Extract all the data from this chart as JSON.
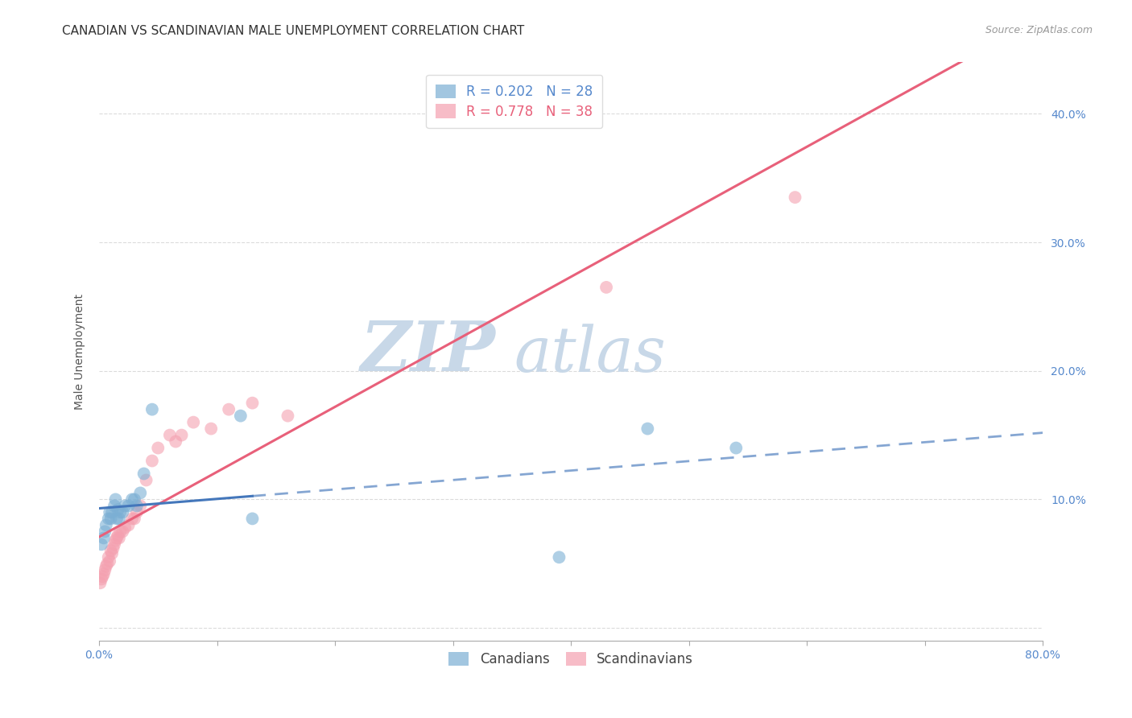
{
  "title": "CANADIAN VS SCANDINAVIAN MALE UNEMPLOYMENT CORRELATION CHART",
  "source": "Source: ZipAtlas.com",
  "ylabel": "Male Unemployment",
  "ytick_labels": [
    "",
    "10.0%",
    "20.0%",
    "30.0%",
    "40.0%"
  ],
  "ytick_values": [
    0.0,
    0.1,
    0.2,
    0.3,
    0.4
  ],
  "xlim": [
    0.0,
    0.8
  ],
  "ylim": [
    -0.01,
    0.44
  ],
  "canadians_x": [
    0.002,
    0.004,
    0.005,
    0.006,
    0.008,
    0.009,
    0.01,
    0.011,
    0.013,
    0.014,
    0.015,
    0.016,
    0.017,
    0.018,
    0.02,
    0.022,
    0.025,
    0.028,
    0.03,
    0.032,
    0.035,
    0.038,
    0.045,
    0.12,
    0.13,
    0.39,
    0.465,
    0.54
  ],
  "canadians_y": [
    0.065,
    0.07,
    0.075,
    0.08,
    0.085,
    0.09,
    0.085,
    0.09,
    0.095,
    0.1,
    0.085,
    0.092,
    0.085,
    0.09,
    0.09,
    0.095,
    0.095,
    0.1,
    0.1,
    0.095,
    0.105,
    0.12,
    0.17,
    0.165,
    0.085,
    0.055,
    0.155,
    0.14
  ],
  "scandinavians_x": [
    0.001,
    0.002,
    0.003,
    0.004,
    0.005,
    0.006,
    0.007,
    0.008,
    0.009,
    0.01,
    0.011,
    0.012,
    0.013,
    0.014,
    0.015,
    0.016,
    0.017,
    0.018,
    0.02,
    0.022,
    0.025,
    0.028,
    0.03,
    0.032,
    0.035,
    0.04,
    0.045,
    0.05,
    0.06,
    0.065,
    0.07,
    0.08,
    0.095,
    0.11,
    0.13,
    0.16,
    0.43,
    0.59
  ],
  "scandinavians_y": [
    0.035,
    0.038,
    0.04,
    0.042,
    0.045,
    0.048,
    0.05,
    0.055,
    0.052,
    0.06,
    0.058,
    0.062,
    0.065,
    0.068,
    0.07,
    0.072,
    0.07,
    0.075,
    0.075,
    0.078,
    0.08,
    0.085,
    0.085,
    0.09,
    0.095,
    0.115,
    0.13,
    0.14,
    0.15,
    0.145,
    0.15,
    0.16,
    0.155,
    0.17,
    0.175,
    0.165,
    0.265,
    0.335
  ],
  "canadian_color": "#7bafd4",
  "scandinavian_color": "#f4a0b0",
  "canadian_line_color": "#4477bb",
  "scandinavian_line_color": "#e8607a",
  "canadian_line_solid_end": 0.13,
  "R_canadian": 0.202,
  "N_canadian": 28,
  "R_scandinavian": 0.778,
  "N_scandinavian": 38,
  "background_color": "#ffffff",
  "grid_color": "#cccccc",
  "watermark_zip": "ZIP",
  "watermark_atlas": "atlas",
  "watermark_color": "#c8d8e8",
  "title_fontsize": 11,
  "axis_label_fontsize": 10,
  "tick_fontsize": 10,
  "legend_fontsize": 12,
  "source_fontsize": 9
}
